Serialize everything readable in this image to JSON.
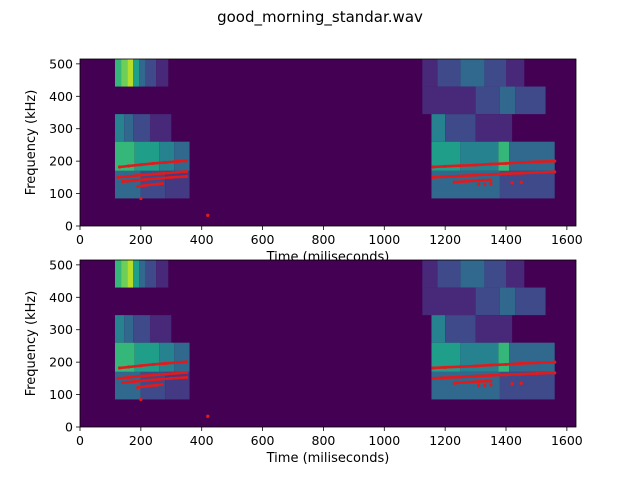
{
  "figure": {
    "suptitle": "good_morning_standar.wav"
  },
  "chart_data": [
    {
      "type": "heatmap",
      "title": "",
      "xlabel": "Time (miliseconds)",
      "ylabel": "Frequency (kHz)",
      "xlim": [
        0,
        1630
      ],
      "ylim": [
        0,
        515
      ],
      "xticks": [
        0,
        200,
        400,
        600,
        800,
        1000,
        1200,
        1400,
        1600
      ],
      "yticks": [
        0,
        100,
        200,
        300,
        400,
        500
      ],
      "colormap": "viridis",
      "background_color": "#440154",
      "spectrogram_cells": [
        {
          "t0": 115,
          "t1": 135,
          "f0": 430,
          "f1": 515,
          "color": "#35b779"
        },
        {
          "t0": 135,
          "t1": 155,
          "f0": 430,
          "f1": 515,
          "color": "#6ece58"
        },
        {
          "t0": 155,
          "t1": 175,
          "f0": 430,
          "f1": 515,
          "color": "#b5de2b"
        },
        {
          "t0": 175,
          "t1": 195,
          "f0": 430,
          "f1": 515,
          "color": "#1f9e89"
        },
        {
          "t0": 195,
          "t1": 215,
          "f0": 430,
          "f1": 515,
          "color": "#31688e"
        },
        {
          "t0": 215,
          "t1": 250,
          "f0": 430,
          "f1": 515,
          "color": "#3e4a89"
        },
        {
          "t0": 250,
          "t1": 290,
          "f0": 430,
          "f1": 515,
          "color": "#482878"
        },
        {
          "t0": 115,
          "t1": 145,
          "f0": 260,
          "f1": 345,
          "color": "#26828e"
        },
        {
          "t0": 145,
          "t1": 175,
          "f0": 260,
          "f1": 345,
          "color": "#31688e"
        },
        {
          "t0": 175,
          "t1": 230,
          "f0": 260,
          "f1": 345,
          "color": "#3e4a89"
        },
        {
          "t0": 230,
          "t1": 300,
          "f0": 260,
          "f1": 345,
          "color": "#482878"
        },
        {
          "t0": 115,
          "t1": 180,
          "f0": 170,
          "f1": 260,
          "color": "#35b779"
        },
        {
          "t0": 180,
          "t1": 260,
          "f0": 170,
          "f1": 260,
          "color": "#1f9e89"
        },
        {
          "t0": 260,
          "t1": 310,
          "f0": 170,
          "f1": 260,
          "color": "#26828e"
        },
        {
          "t0": 310,
          "t1": 360,
          "f0": 170,
          "f1": 260,
          "color": "#31688e"
        },
        {
          "t0": 115,
          "t1": 200,
          "f0": 85,
          "f1": 170,
          "color": "#31688e"
        },
        {
          "t0": 200,
          "t1": 280,
          "f0": 85,
          "f1": 170,
          "color": "#3e4a89"
        },
        {
          "t0": 280,
          "t1": 360,
          "f0": 85,
          "f1": 170,
          "color": "#443983"
        },
        {
          "t0": 1125,
          "t1": 1175,
          "f0": 430,
          "f1": 515,
          "color": "#482878"
        },
        {
          "t0": 1175,
          "t1": 1250,
          "f0": 430,
          "f1": 515,
          "color": "#3e4a89"
        },
        {
          "t0": 1250,
          "t1": 1330,
          "f0": 430,
          "f1": 515,
          "color": "#31688e"
        },
        {
          "t0": 1330,
          "t1": 1400,
          "f0": 430,
          "f1": 515,
          "color": "#3e4a89"
        },
        {
          "t0": 1400,
          "t1": 1460,
          "f0": 430,
          "f1": 515,
          "color": "#482878"
        },
        {
          "t0": 1125,
          "t1": 1300,
          "f0": 345,
          "f1": 430,
          "color": "#482878"
        },
        {
          "t0": 1300,
          "t1": 1380,
          "f0": 345,
          "f1": 430,
          "color": "#3e4a89"
        },
        {
          "t0": 1380,
          "t1": 1430,
          "f0": 345,
          "f1": 430,
          "color": "#31688e"
        },
        {
          "t0": 1430,
          "t1": 1530,
          "f0": 345,
          "f1": 430,
          "color": "#3e4a89"
        },
        {
          "t0": 1155,
          "t1": 1200,
          "f0": 260,
          "f1": 345,
          "color": "#26828e"
        },
        {
          "t0": 1200,
          "t1": 1300,
          "f0": 260,
          "f1": 345,
          "color": "#3e4a89"
        },
        {
          "t0": 1300,
          "t1": 1420,
          "f0": 260,
          "f1": 345,
          "color": "#482878"
        },
        {
          "t0": 1155,
          "t1": 1250,
          "f0": 170,
          "f1": 260,
          "color": "#1f9e89"
        },
        {
          "t0": 1250,
          "t1": 1375,
          "f0": 170,
          "f1": 260,
          "color": "#26828e"
        },
        {
          "t0": 1375,
          "t1": 1410,
          "f0": 170,
          "f1": 260,
          "color": "#35b779"
        },
        {
          "t0": 1410,
          "t1": 1560,
          "f0": 170,
          "f1": 260,
          "color": "#31688e"
        },
        {
          "t0": 1155,
          "t1": 1380,
          "f0": 85,
          "f1": 170,
          "color": "#31688e"
        },
        {
          "t0": 1380,
          "t1": 1560,
          "f0": 85,
          "f1": 170,
          "color": "#3e4a89"
        }
      ],
      "pitch_tracks_color": "#e31a1c",
      "pitch_tracks": [
        {
          "x": [
            130,
            160,
            200,
            240,
            280,
            320,
            350
          ],
          "y": [
            182,
            185,
            189,
            193,
            196,
            199,
            201
          ]
        },
        {
          "x": [
            125,
            160,
            200,
            240,
            280,
            320,
            350
          ],
          "y": [
            150,
            153,
            157,
            160,
            163,
            166,
            168
          ]
        },
        {
          "x": [
            140,
            180,
            220,
            260,
            300,
            340,
            350
          ],
          "y": [
            137,
            140,
            144,
            147,
            150,
            152,
            153
          ]
        },
        {
          "x": [
            190,
            220,
            250,
            270
          ],
          "y": [
            122,
            126,
            129,
            131
          ]
        },
        {
          "x": [
            1160,
            1200,
            1250,
            1300,
            1350,
            1400,
            1450,
            1500,
            1560
          ],
          "y": [
            182,
            184,
            186,
            188,
            191,
            193,
            196,
            198,
            200
          ]
        },
        {
          "x": [
            1160,
            1200,
            1250,
            1300,
            1350,
            1400,
            1450,
            1500,
            1560
          ],
          "y": [
            150,
            152,
            154,
            157,
            159,
            161,
            163,
            165,
            167
          ]
        },
        {
          "x": [
            1230,
            1270,
            1310,
            1350
          ],
          "y": [
            135,
            138,
            140,
            142
          ]
        }
      ],
      "pitch_points": [
        {
          "x": 200,
          "y": 85
        },
        {
          "x": 420,
          "y": 33
        },
        {
          "x": 1310,
          "y": 128
        },
        {
          "x": 1330,
          "y": 128
        },
        {
          "x": 1350,
          "y": 130
        },
        {
          "x": 1420,
          "y": 133
        },
        {
          "x": 1450,
          "y": 135
        }
      ]
    },
    {
      "type": "heatmap",
      "title": "",
      "xlabel": "Time (miliseconds)",
      "ylabel": "Frequency (kHz)",
      "xlim": [
        0,
        1630
      ],
      "ylim": [
        0,
        515
      ],
      "xticks": [
        0,
        200,
        400,
        600,
        800,
        1000,
        1200,
        1400,
        1600
      ],
      "yticks": [
        0,
        100,
        200,
        300,
        400,
        500
      ],
      "colormap": "viridis",
      "background_color": "#440154",
      "spectrogram_cells": [
        {
          "t0": 115,
          "t1": 135,
          "f0": 430,
          "f1": 515,
          "color": "#35b779"
        },
        {
          "t0": 135,
          "t1": 155,
          "f0": 430,
          "f1": 515,
          "color": "#6ece58"
        },
        {
          "t0": 155,
          "t1": 175,
          "f0": 430,
          "f1": 515,
          "color": "#b5de2b"
        },
        {
          "t0": 175,
          "t1": 195,
          "f0": 430,
          "f1": 515,
          "color": "#1f9e89"
        },
        {
          "t0": 195,
          "t1": 215,
          "f0": 430,
          "f1": 515,
          "color": "#31688e"
        },
        {
          "t0": 215,
          "t1": 250,
          "f0": 430,
          "f1": 515,
          "color": "#3e4a89"
        },
        {
          "t0": 250,
          "t1": 290,
          "f0": 430,
          "f1": 515,
          "color": "#482878"
        },
        {
          "t0": 115,
          "t1": 145,
          "f0": 260,
          "f1": 345,
          "color": "#26828e"
        },
        {
          "t0": 145,
          "t1": 175,
          "f0": 260,
          "f1": 345,
          "color": "#31688e"
        },
        {
          "t0": 175,
          "t1": 230,
          "f0": 260,
          "f1": 345,
          "color": "#3e4a89"
        },
        {
          "t0": 230,
          "t1": 300,
          "f0": 260,
          "f1": 345,
          "color": "#482878"
        },
        {
          "t0": 115,
          "t1": 180,
          "f0": 170,
          "f1": 260,
          "color": "#35b779"
        },
        {
          "t0": 180,
          "t1": 260,
          "f0": 170,
          "f1": 260,
          "color": "#1f9e89"
        },
        {
          "t0": 260,
          "t1": 310,
          "f0": 170,
          "f1": 260,
          "color": "#26828e"
        },
        {
          "t0": 310,
          "t1": 360,
          "f0": 170,
          "f1": 260,
          "color": "#31688e"
        },
        {
          "t0": 115,
          "t1": 200,
          "f0": 85,
          "f1": 170,
          "color": "#31688e"
        },
        {
          "t0": 200,
          "t1": 280,
          "f0": 85,
          "f1": 170,
          "color": "#3e4a89"
        },
        {
          "t0": 280,
          "t1": 360,
          "f0": 85,
          "f1": 170,
          "color": "#443983"
        },
        {
          "t0": 1125,
          "t1": 1175,
          "f0": 430,
          "f1": 515,
          "color": "#482878"
        },
        {
          "t0": 1175,
          "t1": 1250,
          "f0": 430,
          "f1": 515,
          "color": "#3e4a89"
        },
        {
          "t0": 1250,
          "t1": 1330,
          "f0": 430,
          "f1": 515,
          "color": "#31688e"
        },
        {
          "t0": 1330,
          "t1": 1400,
          "f0": 430,
          "f1": 515,
          "color": "#3e4a89"
        },
        {
          "t0": 1400,
          "t1": 1460,
          "f0": 430,
          "f1": 515,
          "color": "#482878"
        },
        {
          "t0": 1125,
          "t1": 1300,
          "f0": 345,
          "f1": 430,
          "color": "#482878"
        },
        {
          "t0": 1300,
          "t1": 1380,
          "f0": 345,
          "f1": 430,
          "color": "#3e4a89"
        },
        {
          "t0": 1380,
          "t1": 1430,
          "f0": 345,
          "f1": 430,
          "color": "#31688e"
        },
        {
          "t0": 1430,
          "t1": 1530,
          "f0": 345,
          "f1": 430,
          "color": "#3e4a89"
        },
        {
          "t0": 1155,
          "t1": 1200,
          "f0": 260,
          "f1": 345,
          "color": "#26828e"
        },
        {
          "t0": 1200,
          "t1": 1300,
          "f0": 260,
          "f1": 345,
          "color": "#3e4a89"
        },
        {
          "t0": 1300,
          "t1": 1420,
          "f0": 260,
          "f1": 345,
          "color": "#482878"
        },
        {
          "t0": 1155,
          "t1": 1250,
          "f0": 170,
          "f1": 260,
          "color": "#1f9e89"
        },
        {
          "t0": 1250,
          "t1": 1375,
          "f0": 170,
          "f1": 260,
          "color": "#26828e"
        },
        {
          "t0": 1375,
          "t1": 1410,
          "f0": 170,
          "f1": 260,
          "color": "#35b779"
        },
        {
          "t0": 1410,
          "t1": 1560,
          "f0": 170,
          "f1": 260,
          "color": "#31688e"
        },
        {
          "t0": 1155,
          "t1": 1380,
          "f0": 85,
          "f1": 170,
          "color": "#31688e"
        },
        {
          "t0": 1380,
          "t1": 1560,
          "f0": 85,
          "f1": 170,
          "color": "#3e4a89"
        }
      ],
      "pitch_tracks_color": "#e31a1c",
      "pitch_tracks": [
        {
          "x": [
            130,
            160,
            200,
            240,
            280,
            320,
            350
          ],
          "y": [
            182,
            185,
            189,
            193,
            196,
            199,
            201
          ]
        },
        {
          "x": [
            125,
            160,
            200,
            240,
            280,
            320,
            350
          ],
          "y": [
            150,
            153,
            157,
            160,
            163,
            166,
            168
          ]
        },
        {
          "x": [
            140,
            180,
            220,
            260,
            300,
            340,
            350
          ],
          "y": [
            137,
            140,
            144,
            147,
            150,
            152,
            153
          ]
        },
        {
          "x": [
            190,
            220,
            250,
            270
          ],
          "y": [
            122,
            126,
            129,
            131
          ]
        },
        {
          "x": [
            1160,
            1200,
            1250,
            1300,
            1350,
            1400,
            1450,
            1500,
            1560
          ],
          "y": [
            182,
            184,
            186,
            188,
            191,
            193,
            196,
            198,
            200
          ]
        },
        {
          "x": [
            1160,
            1200,
            1250,
            1300,
            1350,
            1400,
            1450,
            1500,
            1560
          ],
          "y": [
            150,
            152,
            154,
            157,
            159,
            161,
            163,
            165,
            167
          ]
        },
        {
          "x": [
            1230,
            1270,
            1310,
            1350
          ],
          "y": [
            135,
            138,
            140,
            142
          ]
        }
      ],
      "pitch_points": [
        {
          "x": 200,
          "y": 85
        },
        {
          "x": 420,
          "y": 33
        },
        {
          "x": 1310,
          "y": 128
        },
        {
          "x": 1330,
          "y": 128
        },
        {
          "x": 1350,
          "y": 130
        },
        {
          "x": 1420,
          "y": 133
        },
        {
          "x": 1450,
          "y": 135
        }
      ]
    }
  ]
}
